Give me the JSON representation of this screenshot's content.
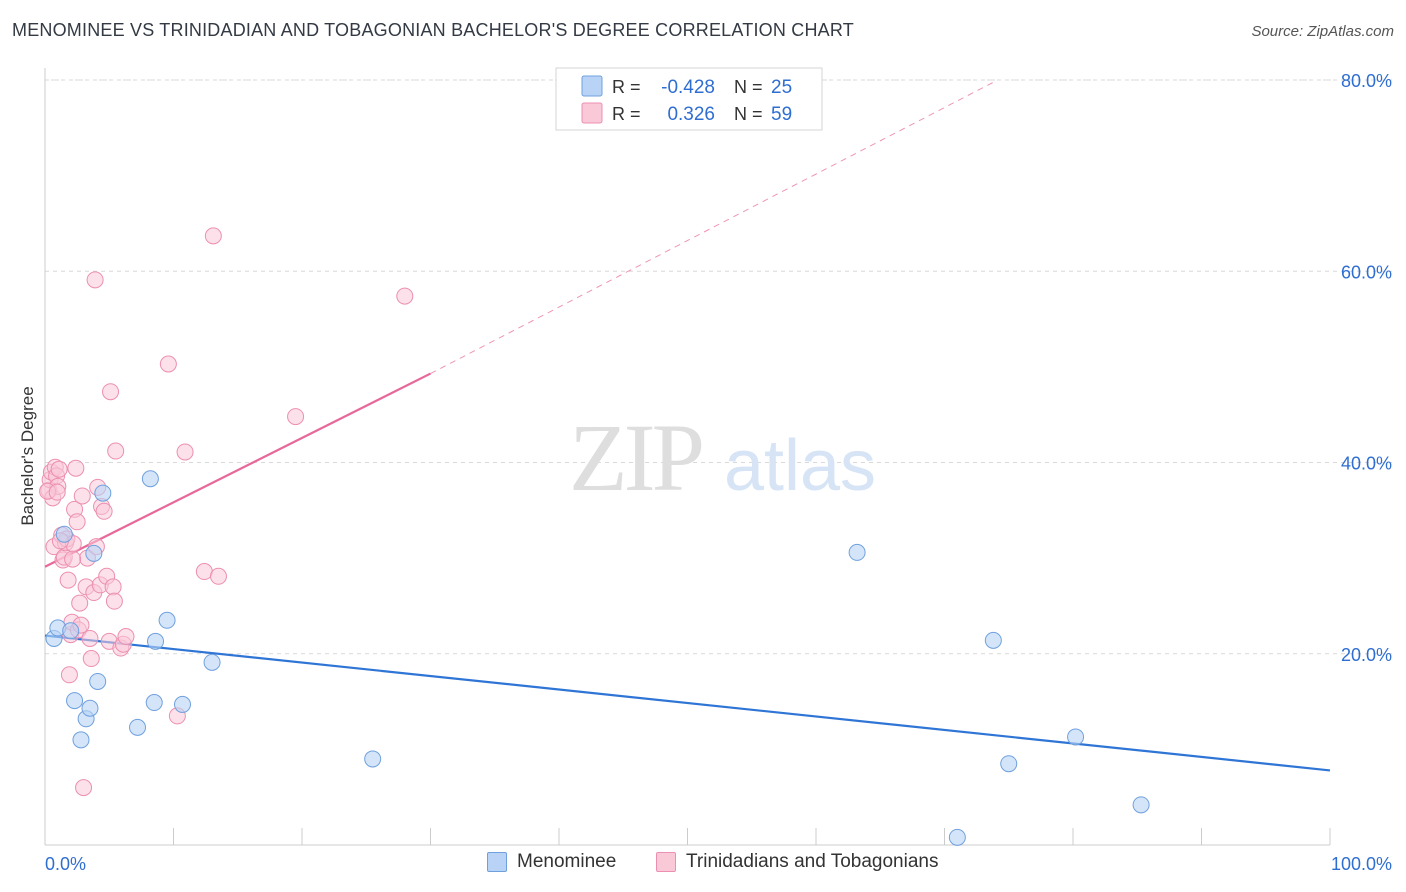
{
  "title": "MENOMINEE VS TRINIDADIAN AND TOBAGONIAN BACHELOR'S DEGREE CORRELATION CHART",
  "source": "Source: ZipAtlas.com",
  "watermark": {
    "zip": "ZIP",
    "atlas": "atlas"
  },
  "colors": {
    "blue_fill": "#b8d3f5",
    "blue_stroke": "#6fa0de",
    "blue_line": "#2f75d6",
    "pink_fill": "#f9c9d8",
    "pink_stroke": "#ec8fb0",
    "pink_line": "#e8689a",
    "value_text": "#2f6ed1",
    "grid": "#d9d9d9"
  },
  "legend_top": {
    "rows": [
      {
        "r_label": "R =",
        "r_value": "-0.428",
        "n_label": "N =",
        "n_value": "25"
      },
      {
        "r_label": "R =",
        "r_value": "0.326",
        "n_label": "N =",
        "n_value": "59"
      }
    ]
  },
  "legend_bottom": [
    {
      "label": "Menominee"
    },
    {
      "label": "Trinidadians and Tobagonians"
    }
  ],
  "chart_data": {
    "type": "scatter",
    "title": "MENOMINEE VS TRINIDADIAN AND TOBAGONIAN BACHELOR'S DEGREE CORRELATION CHART",
    "xlabel": "",
    "ylabel": "Bachelor's Degree",
    "xlim": [
      0,
      100
    ],
    "ylim": [
      0,
      80
    ],
    "x_tick_labels": [
      "0.0%",
      "100.0%"
    ],
    "y_ticks": [
      20,
      40,
      60,
      80
    ],
    "y_tick_labels": [
      "20.0%",
      "40.0%",
      "60.0%",
      "80.0%"
    ],
    "grid": true,
    "legend_placement": "top-center",
    "series": [
      {
        "name": "Menominee",
        "R": -0.428,
        "N": 25,
        "trend": {
          "x": [
            0,
            100
          ],
          "y": [
            21.9,
            7.8
          ]
        },
        "points": [
          [
            0.7,
            21.6
          ],
          [
            1.0,
            22.7
          ],
          [
            2.0,
            22.4
          ],
          [
            2.3,
            15.1
          ],
          [
            2.8,
            11.0
          ],
          [
            3.2,
            13.2
          ],
          [
            3.5,
            14.3
          ],
          [
            4.1,
            17.1
          ],
          [
            4.5,
            36.8
          ],
          [
            7.2,
            12.3
          ],
          [
            8.2,
            38.3
          ],
          [
            8.5,
            14.9
          ],
          [
            8.6,
            21.3
          ],
          [
            9.5,
            23.5
          ],
          [
            10.7,
            14.7
          ],
          [
            13.0,
            19.1
          ],
          [
            25.5,
            9.0
          ],
          [
            63.2,
            30.6
          ],
          [
            73.8,
            21.4
          ],
          [
            75.0,
            8.5
          ],
          [
            80.2,
            11.3
          ],
          [
            85.3,
            4.2
          ],
          [
            71.0,
            0.8
          ],
          [
            1.5,
            32.5
          ],
          [
            3.8,
            30.5
          ]
        ]
      },
      {
        "name": "Trinidadians and Tobagonians",
        "R": 0.326,
        "N": 59,
        "trend": {
          "x": [
            0,
            30
          ],
          "y": [
            29.1,
            49.3
          ]
        },
        "trend_extension": {
          "x": [
            30,
            74
          ],
          "y": [
            49.3,
            79.9
          ]
        },
        "points": [
          [
            0.3,
            37.1
          ],
          [
            0.4,
            38.2
          ],
          [
            0.5,
            39.0
          ],
          [
            0.6,
            36.3
          ],
          [
            0.7,
            31.2
          ],
          [
            0.8,
            39.5
          ],
          [
            0.9,
            38.6
          ],
          [
            1.0,
            37.5
          ],
          [
            1.1,
            39.3
          ],
          [
            1.3,
            32.4
          ],
          [
            1.4,
            29.8
          ],
          [
            1.5,
            30.1
          ],
          [
            1.6,
            31.6
          ],
          [
            1.7,
            32.0
          ],
          [
            1.8,
            27.7
          ],
          [
            1.9,
            17.8
          ],
          [
            2.0,
            22.0
          ],
          [
            2.1,
            23.3
          ],
          [
            2.2,
            31.5
          ],
          [
            2.3,
            35.1
          ],
          [
            2.4,
            39.4
          ],
          [
            2.5,
            33.8
          ],
          [
            2.6,
            22.5
          ],
          [
            2.7,
            25.3
          ],
          [
            2.8,
            23.0
          ],
          [
            2.9,
            36.5
          ],
          [
            3.0,
            6.0
          ],
          [
            3.2,
            27.0
          ],
          [
            3.3,
            30.0
          ],
          [
            3.5,
            21.6
          ],
          [
            3.6,
            19.5
          ],
          [
            3.8,
            26.4
          ],
          [
            4.0,
            31.2
          ],
          [
            4.1,
            37.4
          ],
          [
            4.3,
            27.2
          ],
          [
            4.4,
            35.4
          ],
          [
            4.6,
            34.9
          ],
          [
            4.8,
            28.1
          ],
          [
            5.0,
            21.3
          ],
          [
            5.1,
            47.4
          ],
          [
            5.3,
            27.0
          ],
          [
            5.4,
            25.5
          ],
          [
            5.5,
            41.2
          ],
          [
            5.9,
            20.6
          ],
          [
            6.1,
            21.0
          ],
          [
            6.3,
            21.8
          ],
          [
            9.6,
            50.3
          ],
          [
            10.3,
            13.5
          ],
          [
            10.9,
            41.1
          ],
          [
            12.4,
            28.6
          ],
          [
            13.1,
            63.7
          ],
          [
            13.5,
            28.1
          ],
          [
            19.5,
            44.8
          ],
          [
            28.0,
            57.4
          ],
          [
            3.9,
            59.1
          ],
          [
            0.2,
            37.0
          ],
          [
            1.2,
            31.8
          ],
          [
            2.15,
            29.9
          ],
          [
            0.95,
            36.9
          ]
        ]
      }
    ]
  }
}
